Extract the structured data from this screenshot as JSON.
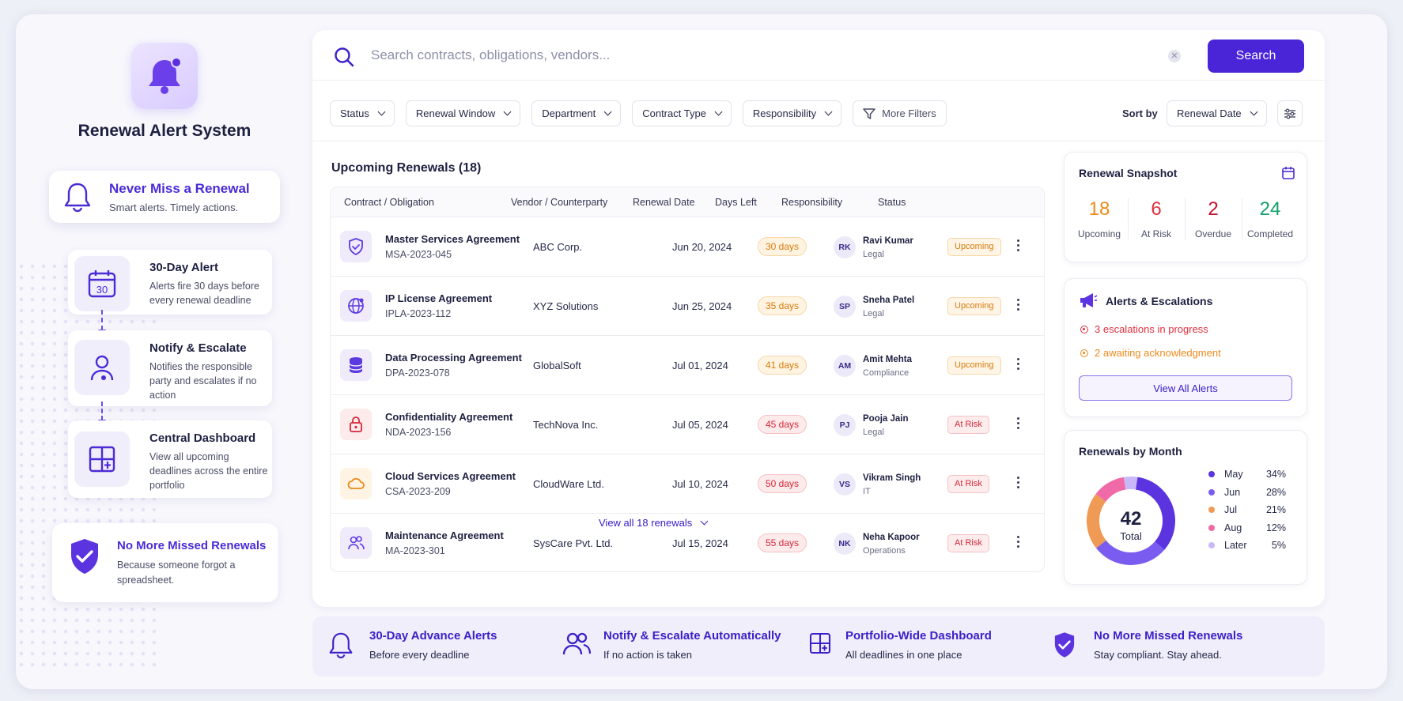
{
  "sidebar": {
    "app_title": "Renewal Alert System",
    "hero": {
      "title": "Never Miss a Renewal",
      "subtitle": "Smart alerts. Timely actions."
    },
    "steps": [
      {
        "title": "30-Day Alert",
        "desc": "Alerts fire 30 days before every renewal deadline",
        "icon": "calendar-30-icon",
        "icon_text": "30"
      },
      {
        "title": "Notify & Escalate",
        "desc": "Notifies the responsible party and escalates if no action",
        "icon": "person-alert-icon"
      },
      {
        "title": "Central Dashboard",
        "desc": "View all upcoming deadlines across the entire portfolio",
        "icon": "dashboard-grid-icon"
      }
    ],
    "promise": {
      "title": "No More Missed Renewals",
      "subtitle": "Because someone forgot a spreadsheet."
    }
  },
  "search": {
    "placeholder": "Search contracts, obligations, vendors...",
    "value": "",
    "button_label": "Search"
  },
  "filters": {
    "items": [
      "Status",
      "Renewal Window",
      "Department",
      "Contract Type",
      "Responsibility"
    ],
    "more_label": "More Filters",
    "sort_label": "Sort by",
    "sort_value": "Renewal Date"
  },
  "table": {
    "title": "Upcoming Renewals (18)",
    "columns": [
      "Contract / Obligation",
      "Vendor / Counterparty",
      "Renewal Date",
      "Days Left",
      "Responsibility",
      "Status"
    ],
    "rows": [
      {
        "name": "Master Services Agreement",
        "id": "MSA-2023-045",
        "vendor": "ABC Corp.",
        "date": "Jun 20, 2024",
        "days": "30 days",
        "initials": "RK",
        "person": "Ravi Kumar",
        "dept": "Legal",
        "status": "Upcoming",
        "icon": "shield-check-icon",
        "tone": "amber",
        "icon_bg": "#efebfb",
        "icon_color": "#5b3be0"
      },
      {
        "name": "IP License Agreement",
        "id": "IPLA-2023-112",
        "vendor": "XYZ Solutions",
        "date": "Jun 25, 2024",
        "days": "35 days",
        "initials": "SP",
        "person": "Sneha Patel",
        "dept": "Legal",
        "status": "Upcoming",
        "icon": "globe-icon",
        "tone": "amber",
        "icon_bg": "#efebfb",
        "icon_color": "#5b3be0"
      },
      {
        "name": "Data Processing Agreement",
        "id": "DPA-2023-078",
        "vendor": "GlobalSoft",
        "date": "Jul 01, 2024",
        "days": "41 days",
        "initials": "AM",
        "person": "Amit Mehta",
        "dept": "Compliance",
        "status": "Upcoming",
        "icon": "database-icon",
        "tone": "amber",
        "icon_bg": "#efebfb",
        "icon_color": "#5b3be0"
      },
      {
        "name": "Confidentiality Agreement",
        "id": "NDA-2023-156",
        "vendor": "TechNova Inc.",
        "date": "Jul 05, 2024",
        "days": "45 days",
        "initials": "PJ",
        "person": "Pooja Jain",
        "dept": "Legal",
        "status": "At Risk",
        "icon": "lock-icon",
        "tone": "red",
        "icon_bg": "#fdeaea",
        "icon_color": "#d4283a"
      },
      {
        "name": "Cloud Services Agreement",
        "id": "CSA-2023-209",
        "vendor": "CloudWare Ltd.",
        "date": "Jul 10, 2024",
        "days": "50 days",
        "initials": "VS",
        "person": "Vikram Singh",
        "dept": "IT",
        "status": "At Risk",
        "icon": "cloud-icon",
        "tone": "red",
        "icon_bg": "#fff3e3",
        "icon_color": "#e88a1a"
      },
      {
        "name": "Maintenance Agreement",
        "id": "MA-2023-301",
        "vendor": "SysCare Pvt. Ltd.",
        "date": "Jul 15, 2024",
        "days": "55 days",
        "initials": "NK",
        "person": "Neha Kapoor",
        "dept": "Operations",
        "status": "At Risk",
        "icon": "users-icon",
        "tone": "red",
        "icon_bg": "#efebfb",
        "icon_color": "#5b3be0"
      }
    ],
    "view_all_label": "View all 18 renewals"
  },
  "snapshot": {
    "title": "Renewal Snapshot",
    "stats": [
      {
        "value": "18",
        "label": "Upcoming",
        "color": "#ef8a1c"
      },
      {
        "value": "6",
        "label": "At Risk",
        "color": "#e0303e"
      },
      {
        "value": "2",
        "label": "Overdue",
        "color": "#c8102e"
      },
      {
        "value": "24",
        "label": "Completed",
        "color": "#12a06b"
      }
    ]
  },
  "alerts": {
    "title": "Alerts & Escalations",
    "lines": [
      {
        "text": "3 escalations in progress",
        "color": "#e0303e"
      },
      {
        "text": "2 awaiting acknowledgment",
        "color": "#ef8a1c"
      }
    ],
    "button_label": "View All Alerts"
  },
  "chart_data": {
    "type": "pie",
    "title": "Renewals by Month",
    "center_value": "42",
    "center_label": "Total",
    "slices": [
      {
        "label": "May",
        "value": 34,
        "pct": "34%",
        "color": "#5b34e0"
      },
      {
        "label": "Jun",
        "value": 28,
        "pct": "28%",
        "color": "#7b5cf0"
      },
      {
        "label": "Jul",
        "value": 21,
        "pct": "21%",
        "color": "#ef9a55"
      },
      {
        "label": "Aug",
        "value": 12,
        "pct": "12%",
        "color": "#f06aa8"
      },
      {
        "label": "Later",
        "value": 5,
        "pct": "5%",
        "color": "#c9b8f8"
      }
    ]
  },
  "footer": {
    "features": [
      {
        "title": "30-Day Advance Alerts",
        "subtitle": "Before every deadline",
        "icon": "bell-icon"
      },
      {
        "title": "Notify & Escalate Automatically",
        "subtitle": "If no action is taken",
        "icon": "users-icon"
      },
      {
        "title": "Portfolio-Wide Dashboard",
        "subtitle": "All deadlines in one place",
        "icon": "dashboard-grid-icon"
      },
      {
        "title": "No More Missed Renewals",
        "subtitle": "Stay compliant. Stay ahead.",
        "icon": "shield-check-icon"
      }
    ]
  },
  "colors": {
    "accent": "#4a25d8",
    "accent_text": "#3b21c8"
  }
}
